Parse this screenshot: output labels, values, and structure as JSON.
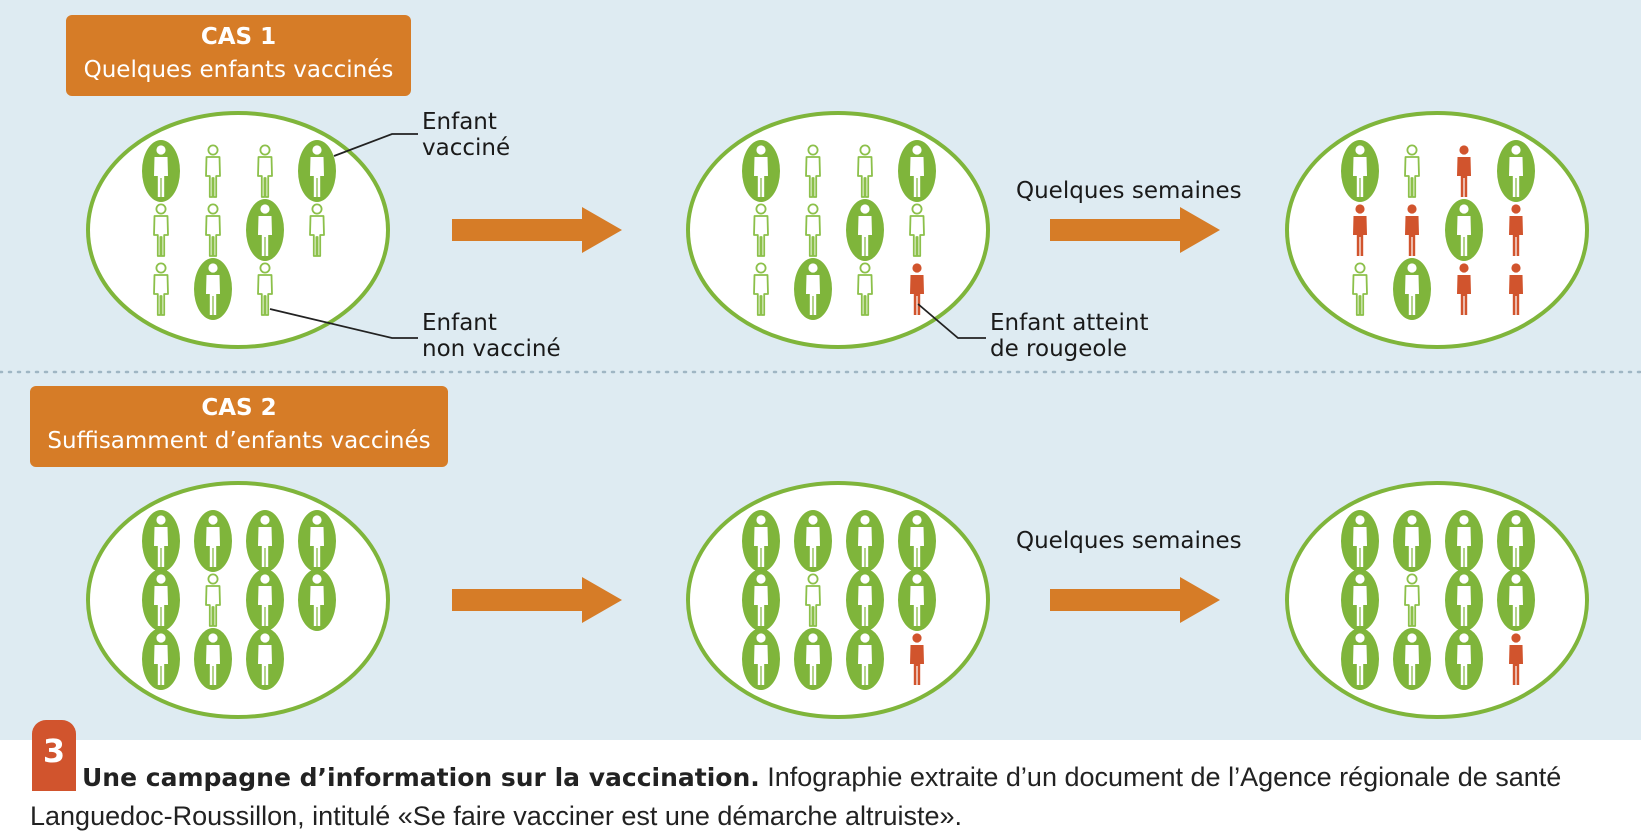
{
  "colors": {
    "panel_background": "#deebf2",
    "vaccinated": "#7fb53b",
    "unvaccinated_outline": "#8cc04a",
    "infected": "#d1542d",
    "arrow": "#d67c27",
    "label_background": "#d67c27",
    "figure_number_background": "#d1542d"
  },
  "legend": {
    "vaccinated": "vaccinated child (green oval with white silhouette)",
    "unvaccinated": "unvaccinated child (green outline silhouette)",
    "infected": "child with measles (red silhouette)"
  },
  "cases": [
    {
      "line1": "CAS 1",
      "line2": "Quelques enfants vaccinés",
      "arrow_label": "Quelques semaines",
      "groups": [
        [
          "V",
          "U",
          "U",
          "V",
          "U",
          "U",
          "V",
          "U",
          "U",
          "V",
          "U"
        ],
        [
          "V",
          "U",
          "U",
          "V",
          "U",
          "U",
          "V",
          "U",
          "U",
          "V",
          "U",
          "I"
        ],
        [
          "V",
          "U",
          "I",
          "V",
          "I",
          "I",
          "V",
          "I",
          "U",
          "V",
          "I",
          "I"
        ]
      ]
    },
    {
      "line1": "CAS 2",
      "line2": "Suffisamment d’enfants vaccinés",
      "arrow_label": "Quelques semaines",
      "groups": [
        [
          "V",
          "V",
          "V",
          "V",
          "V",
          "U",
          "V",
          "V",
          "V",
          "V",
          "V"
        ],
        [
          "V",
          "V",
          "V",
          "V",
          "V",
          "U",
          "V",
          "V",
          "V",
          "V",
          "V",
          "I"
        ],
        [
          "V",
          "V",
          "V",
          "V",
          "V",
          "U",
          "V",
          "V",
          "V",
          "V",
          "V",
          "I"
        ]
      ]
    }
  ],
  "annotations": {
    "vaccinated": {
      "line1": "Enfant",
      "line2": "vacciné"
    },
    "unvaccinated": {
      "line1": "Enfant",
      "line2": "non vacciné"
    },
    "infected": {
      "line1": "Enfant atteint",
      "line2": "de rougeole"
    }
  },
  "caption": {
    "number": "3",
    "title": "Une campagne d’information sur la vaccination.",
    "text": " Infographie extraite d’un document de l’Agence régionale de santé Languedoc-Roussillon, intitulé «Se faire vacciner est une démarche altruiste»."
  }
}
